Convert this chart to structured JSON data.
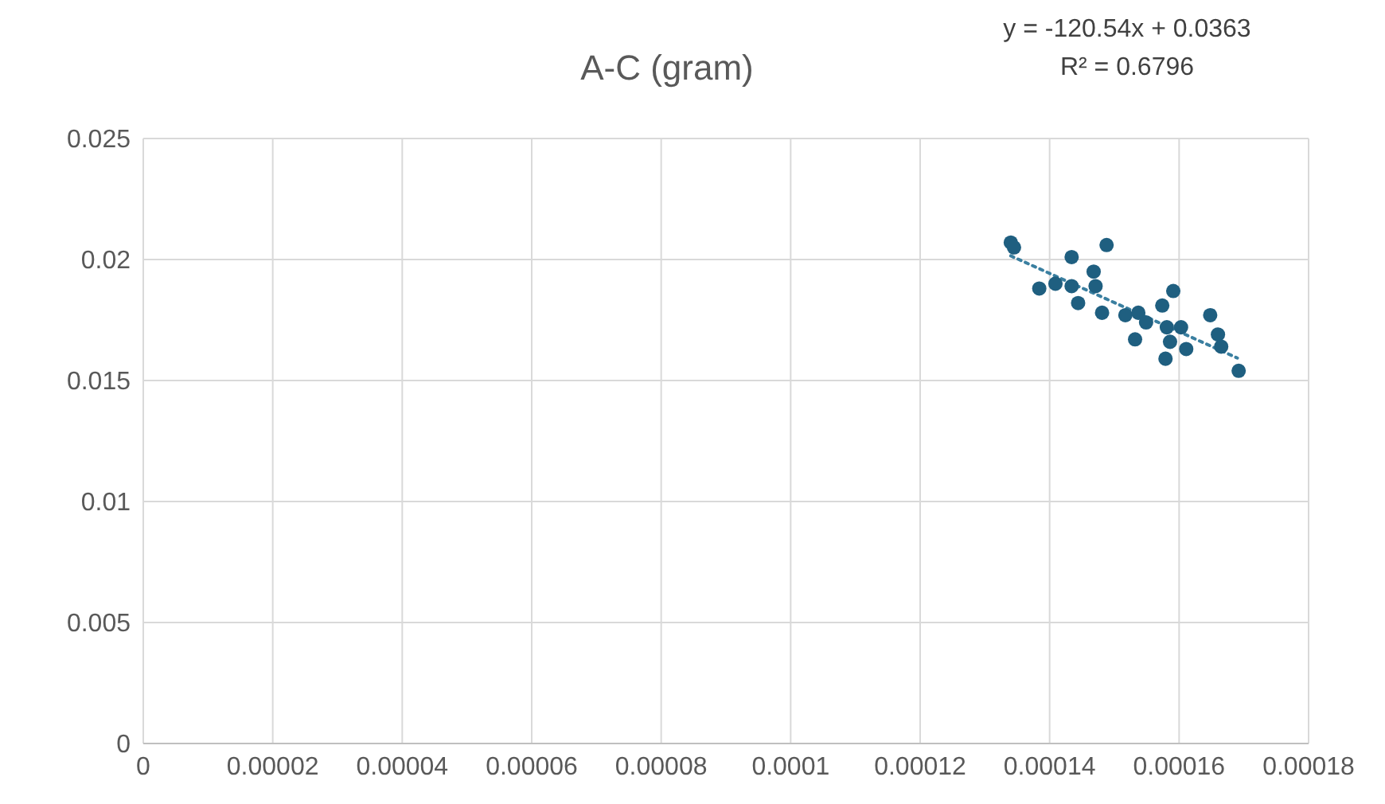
{
  "chart_data": {
    "type": "scatter",
    "title": "A-C (gram)",
    "annotations": [
      "y = -120.54x + 0.0363",
      "R² = 0.6796"
    ],
    "series": [
      {
        "type": "scatter",
        "color": "#1f5f80",
        "marker": "circle",
        "x": [
          0.000134,
          0.0001345,
          0.0001488,
          0.0001434,
          0.0001468,
          0.0001384,
          0.0001409,
          0.0001434,
          0.0001444,
          0.0001471,
          0.0001481,
          0.0001517,
          0.0001537,
          0.0001591,
          0.0001574,
          0.0001549,
          0.0001532,
          0.0001581,
          0.0001603,
          0.0001586,
          0.0001611,
          0.0001579,
          0.0001648,
          0.000166,
          0.0001665,
          0.0001692
        ],
        "values": [
          0.0207,
          0.0205,
          0.0206,
          0.0201,
          0.0195,
          0.0188,
          0.019,
          0.0189,
          0.0182,
          0.0189,
          0.0178,
          0.0177,
          0.0178,
          0.0187,
          0.0181,
          0.0174,
          0.0167,
          0.0172,
          0.0172,
          0.0166,
          0.0163,
          0.0159,
          0.0177,
          0.0169,
          0.0164,
          0.0154
        ]
      },
      {
        "type": "line",
        "color": "#3a7fa0",
        "marker": "none",
        "line_style": "dotted",
        "x": [
          0.000134,
          0.000169
        ],
        "values": [
          0.02015,
          0.01593
        ]
      }
    ],
    "xlim": [
      0,
      0.00018
    ],
    "xticks": [
      0,
      {
        "value": 2e-05,
        "label": "0.00002"
      },
      {
        "value": 4e-05,
        "label": "0.00004"
      },
      {
        "value": 6e-05,
        "label": "0.00006"
      },
      {
        "value": 8e-05,
        "label": "0.00008"
      },
      0.0001,
      0.00012,
      0.00014,
      0.00016,
      0.00018
    ],
    "ylim": [
      0,
      0.025
    ],
    "yticks": [
      0,
      0.005,
      0.01,
      0.015,
      0.02,
      0.025
    ],
    "grid": true
  }
}
